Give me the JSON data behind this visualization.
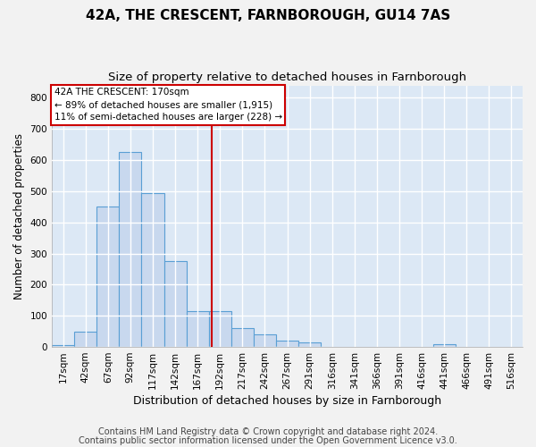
{
  "title1": "42A, THE CRESCENT, FARNBOROUGH, GU14 7AS",
  "title2": "Size of property relative to detached houses in Farnborough",
  "xlabel": "Distribution of detached houses by size in Farnborough",
  "ylabel": "Number of detached properties",
  "footer1": "Contains HM Land Registry data © Crown copyright and database right 2024.",
  "footer2": "Contains public sector information licensed under the Open Government Licence v3.0.",
  "bin_labels": [
    "17sqm",
    "42sqm",
    "67sqm",
    "92sqm",
    "117sqm",
    "142sqm",
    "167sqm",
    "192sqm",
    "217sqm",
    "242sqm",
    "267sqm",
    "291sqm",
    "316sqm",
    "341sqm",
    "366sqm",
    "391sqm",
    "416sqm",
    "441sqm",
    "466sqm",
    "491sqm",
    "516sqm"
  ],
  "bar_heights": [
    5,
    50,
    450,
    625,
    495,
    275,
    115,
    115,
    60,
    40,
    20,
    15,
    0,
    0,
    0,
    0,
    0,
    10,
    0,
    0,
    0
  ],
  "bar_color": "#c8d8ee",
  "bar_edge_color": "#5a9fd4",
  "vline_x_index": 6.65,
  "vline_color": "#cc0000",
  "annotation_text": "42A THE CRESCENT: 170sqm\n← 89% of detached houses are smaller (1,915)\n11% of semi-detached houses are larger (228) →",
  "annotation_box_color": "#ffffff",
  "annotation_box_edge": "#cc0000",
  "ylim": [
    0,
    840
  ],
  "yticks": [
    0,
    100,
    200,
    300,
    400,
    500,
    600,
    700,
    800
  ],
  "bg_color": "#dce8f5",
  "grid_color": "#ffffff",
  "title1_fontsize": 11,
  "title2_fontsize": 9.5,
  "xlabel_fontsize": 9,
  "ylabel_fontsize": 8.5,
  "tick_fontsize": 7.5,
  "footer_fontsize": 7,
  "fig_bg": "#f2f2f2"
}
